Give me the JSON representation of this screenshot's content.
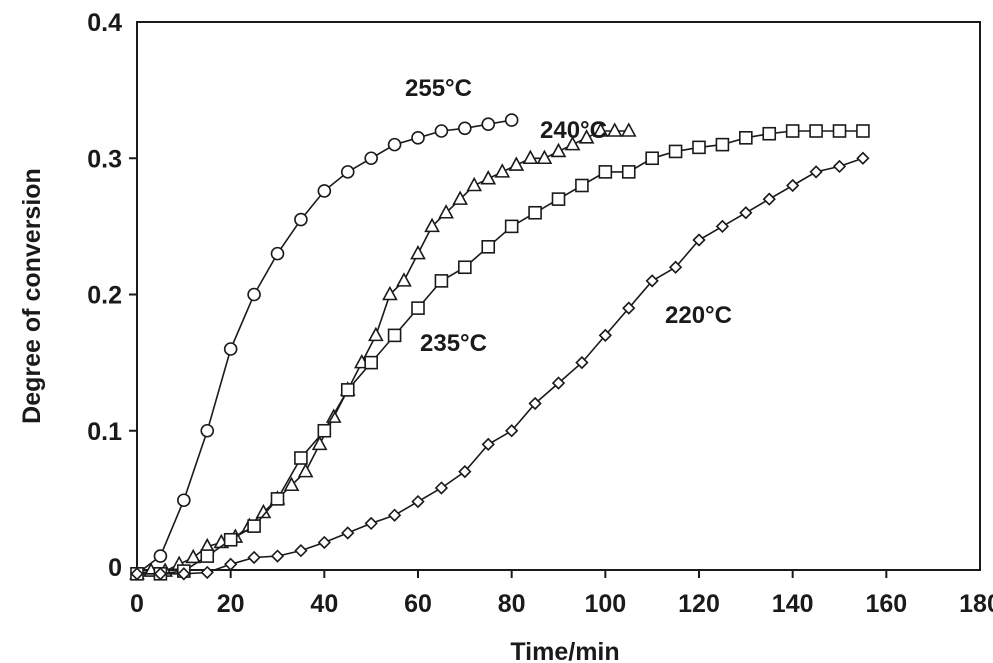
{
  "chart_data": {
    "type": "line",
    "title": "",
    "xlabel": "Time/min",
    "ylabel": "Degree of conversion",
    "xlim": [
      0,
      180
    ],
    "ylim": [
      0,
      0.4
    ],
    "xticks": [
      "0",
      "20",
      "40",
      "60",
      "80",
      "100",
      "120",
      "140",
      "160",
      "180"
    ],
    "yticks": [
      "0",
      "0.1",
      "0.2",
      "0.3",
      "0.4"
    ],
    "grid": false,
    "series": [
      {
        "name": "255°C",
        "marker": "circle",
        "points": [
          [
            0,
            -0.005
          ],
          [
            5,
            0.008
          ],
          [
            10,
            0.049
          ],
          [
            15,
            0.1
          ],
          [
            20,
            0.16
          ],
          [
            25,
            0.2
          ],
          [
            30,
            0.23
          ],
          [
            35,
            0.255
          ],
          [
            40,
            0.276
          ],
          [
            45,
            0.29
          ],
          [
            50,
            0.3
          ],
          [
            55,
            0.31
          ],
          [
            60,
            0.315
          ],
          [
            65,
            0.32
          ],
          [
            70,
            0.322
          ],
          [
            75,
            0.325
          ],
          [
            80,
            0.328
          ]
        ]
      },
      {
        "name": "240°C",
        "marker": "triangle",
        "points": [
          [
            0,
            -0.005
          ],
          [
            3,
            -0.003
          ],
          [
            6,
            -0.003
          ],
          [
            9,
            0.002
          ],
          [
            12,
            0.007
          ],
          [
            15,
            0.015
          ],
          [
            18,
            0.018
          ],
          [
            21,
            0.022
          ],
          [
            24,
            0.03
          ],
          [
            27,
            0.04
          ],
          [
            30,
            0.05
          ],
          [
            33,
            0.06
          ],
          [
            36,
            0.07
          ],
          [
            39,
            0.09
          ],
          [
            42,
            0.11
          ],
          [
            45,
            0.13
          ],
          [
            48,
            0.15
          ],
          [
            51,
            0.17
          ],
          [
            54,
            0.2
          ],
          [
            57,
            0.21
          ],
          [
            60,
            0.23
          ],
          [
            63,
            0.25
          ],
          [
            66,
            0.26
          ],
          [
            69,
            0.27
          ],
          [
            72,
            0.28
          ],
          [
            75,
            0.285
          ],
          [
            78,
            0.29
          ],
          [
            81,
            0.295
          ],
          [
            84,
            0.3
          ],
          [
            87,
            0.3
          ],
          [
            90,
            0.305
          ],
          [
            93,
            0.31
          ],
          [
            96,
            0.315
          ],
          [
            99,
            0.32
          ],
          [
            102,
            0.32
          ],
          [
            105,
            0.32
          ]
        ]
      },
      {
        "name": "235°C",
        "marker": "square",
        "points": [
          [
            0,
            -0.005
          ],
          [
            5,
            -0.005
          ],
          [
            10,
            -0.003
          ],
          [
            15,
            0.008
          ],
          [
            20,
            0.02
          ],
          [
            25,
            0.03
          ],
          [
            30,
            0.05
          ],
          [
            35,
            0.08
          ],
          [
            40,
            0.1
          ],
          [
            45,
            0.13
          ],
          [
            50,
            0.15
          ],
          [
            55,
            0.17
          ],
          [
            60,
            0.19
          ],
          [
            65,
            0.21
          ],
          [
            70,
            0.22
          ],
          [
            75,
            0.235
          ],
          [
            80,
            0.25
          ],
          [
            85,
            0.26
          ],
          [
            90,
            0.27
          ],
          [
            95,
            0.28
          ],
          [
            100,
            0.29
          ],
          [
            105,
            0.29
          ],
          [
            110,
            0.3
          ],
          [
            115,
            0.305
          ],
          [
            120,
            0.308
          ],
          [
            125,
            0.31
          ],
          [
            130,
            0.315
          ],
          [
            135,
            0.318
          ],
          [
            140,
            0.32
          ],
          [
            145,
            0.32
          ],
          [
            150,
            0.32
          ],
          [
            155,
            0.32
          ]
        ]
      },
      {
        "name": "220°C",
        "marker": "diamond",
        "points": [
          [
            0,
            -0.005
          ],
          [
            5,
            -0.005
          ],
          [
            10,
            -0.005
          ],
          [
            15,
            -0.004
          ],
          [
            20,
            0.002
          ],
          [
            25,
            0.007
          ],
          [
            30,
            0.008
          ],
          [
            35,
            0.012
          ],
          [
            40,
            0.018
          ],
          [
            45,
            0.025
          ],
          [
            50,
            0.032
          ],
          [
            55,
            0.038
          ],
          [
            60,
            0.048
          ],
          [
            65,
            0.058
          ],
          [
            70,
            0.07
          ],
          [
            75,
            0.09
          ],
          [
            80,
            0.1
          ],
          [
            85,
            0.12
          ],
          [
            90,
            0.135
          ],
          [
            95,
            0.15
          ],
          [
            100,
            0.17
          ],
          [
            105,
            0.19
          ],
          [
            110,
            0.21
          ],
          [
            115,
            0.22
          ],
          [
            120,
            0.24
          ],
          [
            125,
            0.25
          ],
          [
            130,
            0.26
          ],
          [
            135,
            0.27
          ],
          [
            140,
            0.28
          ],
          [
            145,
            0.29
          ],
          [
            150,
            0.294
          ],
          [
            155,
            0.3
          ]
        ]
      }
    ]
  }
}
